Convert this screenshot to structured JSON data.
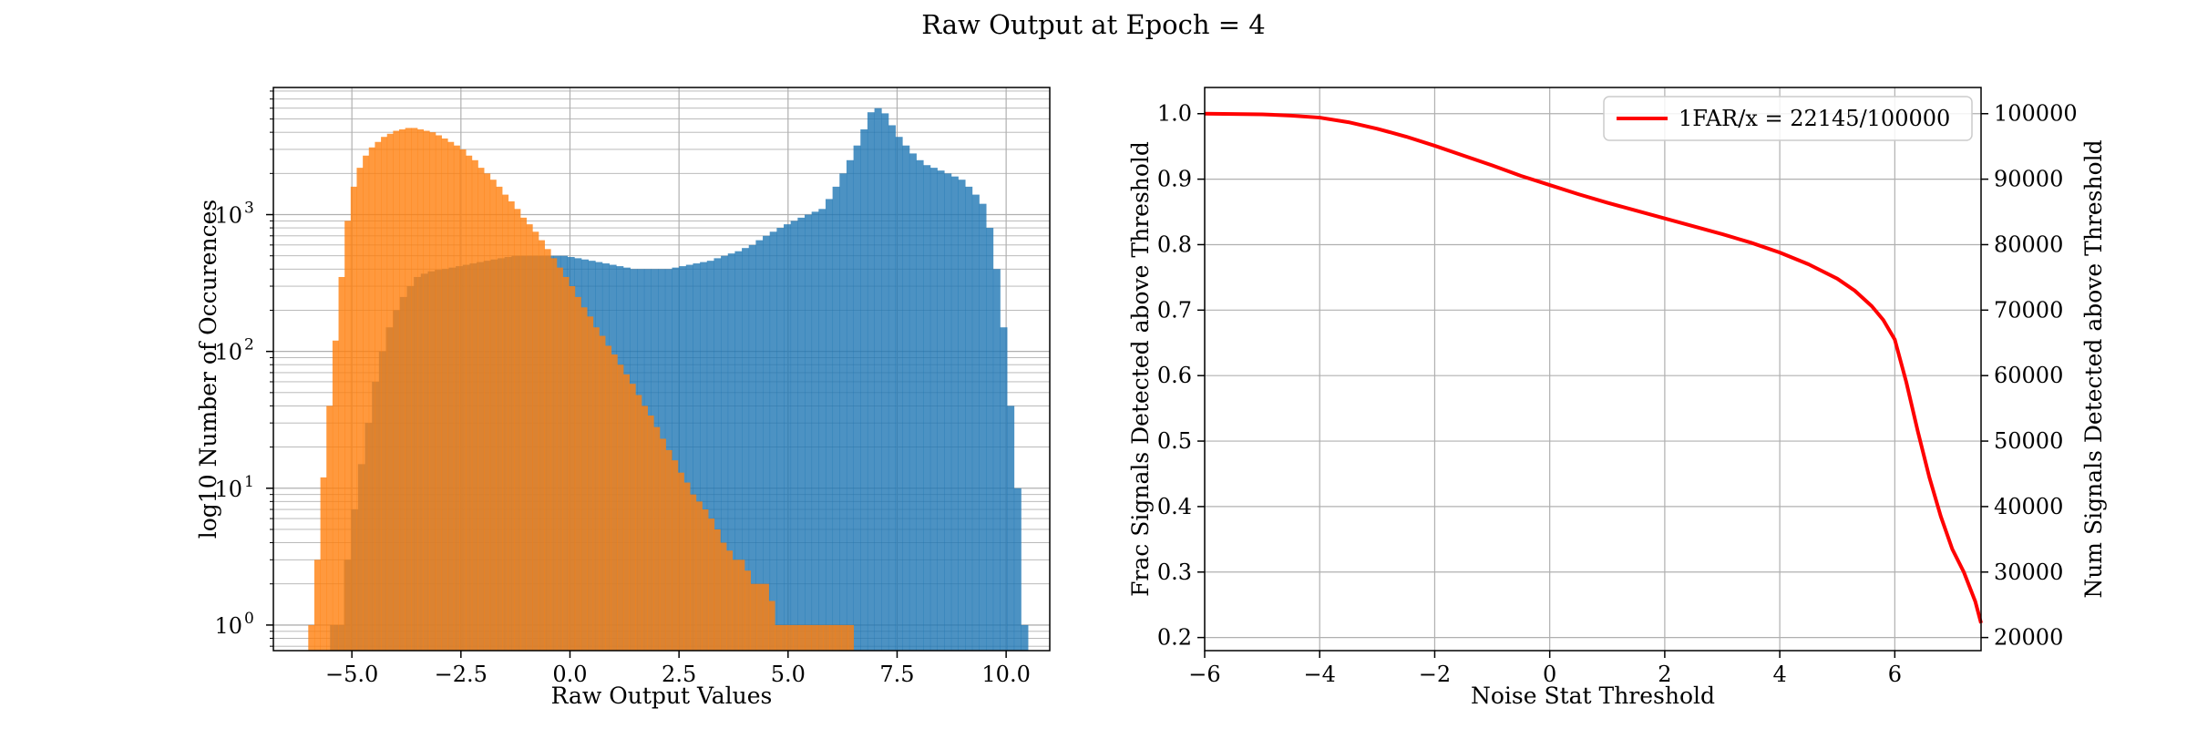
{
  "figure": {
    "suptitle": "Raw Output at Epoch = 4"
  },
  "chart_data": [
    {
      "type": "bar",
      "subtype": "histogram",
      "xlabel": "Raw Output Values",
      "ylabel": "log10 Number of Occurences",
      "xlim": [
        -6.8,
        11.0
      ],
      "ylim": [
        0.65,
        8500
      ],
      "yscale": "log",
      "grid": true,
      "xticks": [
        -5.0,
        -2.5,
        0.0,
        2.5,
        5.0,
        7.5,
        10.0
      ],
      "xtick_labels": [
        "−5.0",
        "−2.5",
        "0.0",
        "2.5",
        "5.0",
        "7.5",
        "10.0"
      ],
      "yticks": [
        1,
        10,
        100,
        1000
      ],
      "ytick_labels": [
        "10",
        "10",
        "10",
        "10"
      ],
      "ytick_exponents": [
        "0",
        "1",
        "2",
        "3"
      ],
      "series": [
        {
          "color": "#1f77b4",
          "alpha": 0.8,
          "bin_range": [
            -5.5,
            10.5
          ],
          "bin_count": 100,
          "values": [
            1,
            1,
            3,
            7,
            15,
            30,
            60,
            100,
            150,
            200,
            250,
            300,
            350,
            370,
            385,
            395,
            400,
            410,
            420,
            430,
            440,
            450,
            460,
            470,
            480,
            490,
            500,
            500,
            500,
            500,
            500,
            500,
            500,
            500,
            490,
            480,
            470,
            460,
            450,
            440,
            430,
            420,
            410,
            400,
            400,
            400,
            400,
            400,
            400,
            410,
            420,
            430,
            440,
            450,
            460,
            480,
            500,
            520,
            540,
            570,
            600,
            650,
            700,
            750,
            800,
            850,
            900,
            950,
            1000,
            1050,
            1100,
            1300,
            1600,
            2000,
            2500,
            3200,
            4200,
            5600,
            6000,
            5500,
            4500,
            3700,
            3200,
            2800,
            2500,
            2300,
            2200,
            2100,
            2000,
            1900,
            1800,
            1600,
            1400,
            1200,
            800,
            400,
            150,
            40,
            10,
            1
          ]
        },
        {
          "color": "#ff7f0e",
          "alpha": 0.8,
          "bin_range": [
            -6.0,
            6.5
          ],
          "bin_count": 90,
          "values": [
            1,
            3,
            12,
            40,
            120,
            350,
            900,
            1600,
            2200,
            2700,
            3100,
            3400,
            3700,
            3900,
            4100,
            4200,
            4300,
            4300,
            4200,
            4100,
            4000,
            3800,
            3600,
            3400,
            3200,
            3000,
            2700,
            2500,
            2200,
            2000,
            1800,
            1600,
            1400,
            1250,
            1100,
            950,
            850,
            750,
            650,
            560,
            480,
            410,
            350,
            300,
            250,
            210,
            180,
            150,
            130,
            110,
            95,
            80,
            68,
            58,
            48,
            40,
            34,
            28,
            23,
            19,
            16,
            13,
            11,
            9,
            8,
            7,
            6,
            5,
            4,
            3.5,
            3,
            3,
            2.5,
            2,
            2,
            2,
            1.5,
            1,
            1,
            1,
            1,
            1,
            1,
            1,
            1,
            1,
            1,
            1,
            1,
            1
          ]
        }
      ]
    },
    {
      "type": "line",
      "xlabel": "Noise Stat Threshold",
      "ylabel": "Frac Signals Detected above Threshold",
      "ylabel_right": "Num Signals Detected above Threshold",
      "xlim": [
        -6,
        7.5
      ],
      "ylim": [
        0.18,
        1.04
      ],
      "ylim_right": [
        18000,
        104000
      ],
      "grid": true,
      "legend_position": "top-right",
      "xticks": [
        -6,
        -4,
        -2,
        0,
        2,
        4,
        6
      ],
      "xtick_labels": [
        "−6",
        "−4",
        "−2",
        "0",
        "2",
        "4",
        "6"
      ],
      "yticks": [
        0.2,
        0.3,
        0.4,
        0.5,
        0.6,
        0.7,
        0.8,
        0.9,
        1.0
      ],
      "ytick_labels": [
        "0.2",
        "0.3",
        "0.4",
        "0.5",
        "0.6",
        "0.7",
        "0.8",
        "0.9",
        "1.0"
      ],
      "yticks_right": [
        20000,
        30000,
        40000,
        50000,
        60000,
        70000,
        80000,
        90000,
        100000
      ],
      "ytick_labels_right": [
        "20000",
        "30000",
        "40000",
        "50000",
        "60000",
        "70000",
        "80000",
        "90000",
        "100000"
      ],
      "series": [
        {
          "name": "1FAR/x = 22145/100000",
          "color": "#ff0000",
          "x": [
            -6,
            -5,
            -4.5,
            -4,
            -3.5,
            -3,
            -2.5,
            -2,
            -1.5,
            -1,
            -0.5,
            0,
            0.5,
            1,
            1.5,
            2,
            2.5,
            3,
            3.5,
            4,
            4.5,
            5,
            5.3,
            5.6,
            5.8,
            6.0,
            6.2,
            6.4,
            6.6,
            6.8,
            7.0,
            7.2,
            7.4,
            7.5
          ],
          "y": [
            1.0,
            0.999,
            0.997,
            0.994,
            0.987,
            0.977,
            0.965,
            0.951,
            0.936,
            0.921,
            0.905,
            0.891,
            0.877,
            0.864,
            0.852,
            0.84,
            0.828,
            0.816,
            0.803,
            0.788,
            0.77,
            0.748,
            0.73,
            0.706,
            0.685,
            0.655,
            0.59,
            0.515,
            0.445,
            0.385,
            0.335,
            0.3,
            0.255,
            0.222
          ]
        }
      ]
    }
  ]
}
